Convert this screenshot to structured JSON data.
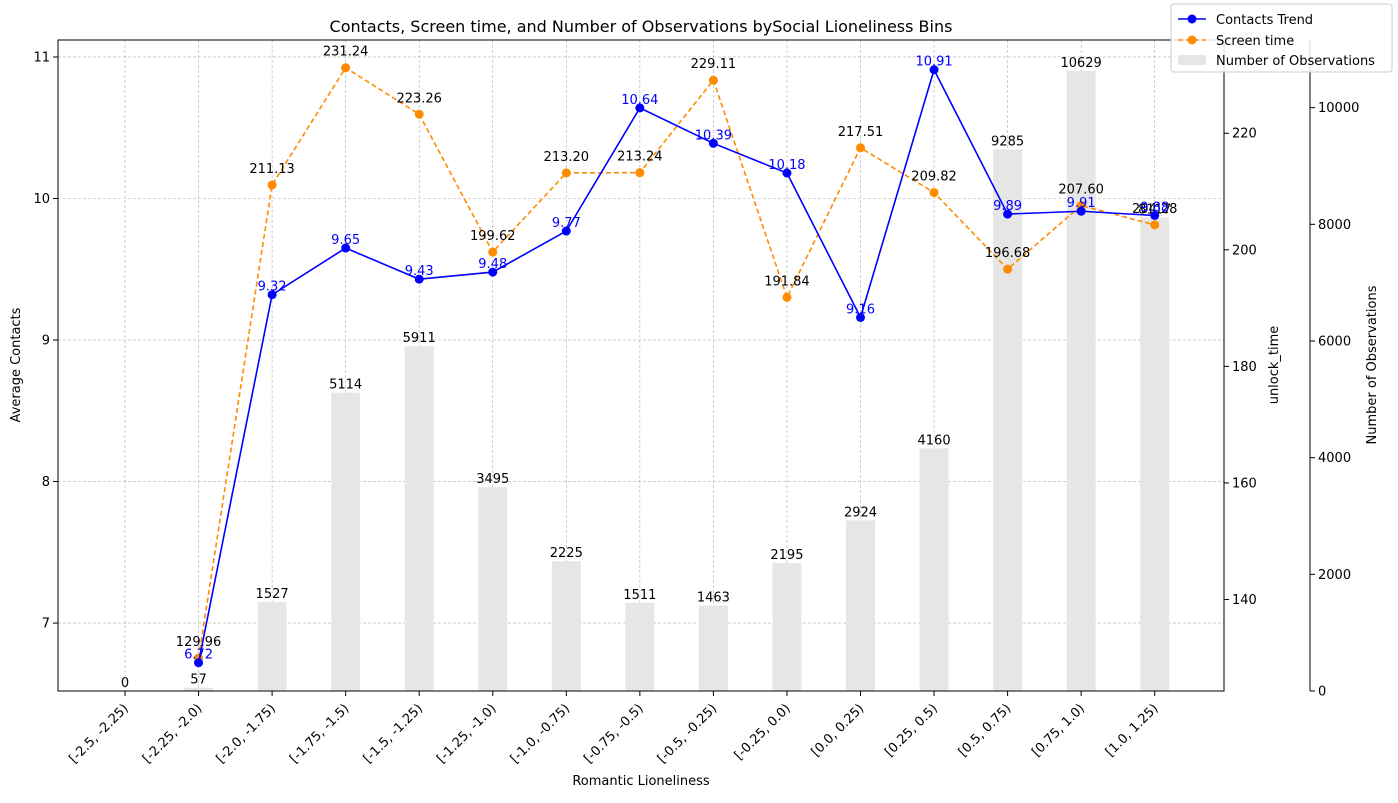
{
  "chart_data": {
    "type": "bar+line",
    "title": "Contacts, Screen time, and Number of Observations bySocial Lioneliness Bins",
    "xlabel": "Romantic Lioneliness",
    "ylabel_left": "Average Contacts",
    "ylabel_right_inner": "unlock_time",
    "ylabel_right_outer": "Number of Observations",
    "categories": [
      "[-2.5, -2.25)",
      "[-2.25, -2.0)",
      "[-2.0, -1.75)",
      "[-1.75, -1.5)",
      "[-1.5, -1.25)",
      "[-1.25, -1.0)",
      "[-1.0, -0.75)",
      "[-0.75, -0.5)",
      "[-0.5, -0.25)",
      "[-0.25, 0.0)",
      "[0.0, 0.25)",
      "[0.25, 0.5)",
      "[0.5, 0.75)",
      "[0.75, 1.0)",
      "[1.0, 1.25)"
    ],
    "contacts": {
      "name": "Contacts Trend",
      "color": "#0000ff",
      "values": [
        null,
        6.72,
        9.32,
        9.65,
        9.43,
        9.48,
        9.77,
        10.64,
        10.39,
        10.18,
        9.16,
        10.91,
        9.89,
        9.91,
        9.88
      ],
      "labels": [
        "",
        "6.72",
        "9.32",
        "9.65",
        "9.43",
        "9.48",
        "9.77",
        "10.64",
        "10.39",
        "10.18",
        "9.16",
        "10.91",
        "9.89",
        "9.91",
        "9.88"
      ]
    },
    "screen_time": {
      "name": "Screen time",
      "color": "#ff8c00",
      "values": [
        null,
        129.96,
        211.13,
        231.24,
        223.26,
        199.62,
        213.2,
        213.24,
        229.11,
        191.84,
        217.51,
        209.82,
        196.68,
        207.6,
        204.28
      ],
      "labels": [
        "",
        "129.96",
        "211.13",
        "231.24",
        "223.26",
        "199.62",
        "213.20",
        "213.24",
        "229.11",
        "191.84",
        "217.51",
        "209.82",
        "196.68",
        "207.60",
        "204.28"
      ]
    },
    "observations": {
      "name": "Number of Observations",
      "color": "#e6e6e6",
      "values": [
        0,
        57,
        1527,
        5114,
        5911,
        3495,
        2225,
        1511,
        1463,
        2195,
        2924,
        4160,
        9285,
        10629,
        8117
      ],
      "labels": [
        "0",
        "57",
        "1527",
        "5114",
        "5911",
        "3495",
        "2225",
        "1511",
        "1463",
        "2195",
        "2924",
        "4160",
        "9285",
        "10629",
        "8117"
      ]
    },
    "y_left": {
      "range": [
        6.52,
        11.12
      ],
      "ticks": [
        7,
        8,
        9,
        10,
        11
      ],
      "tick_labels": [
        "7",
        "8",
        "9",
        "10",
        "11"
      ]
    },
    "y_right_inner": {
      "range": [
        124.3,
        236.0
      ],
      "ticks": [
        140,
        160,
        180,
        200,
        220
      ],
      "tick_labels": [
        "140",
        "160",
        "180",
        "200",
        "220"
      ]
    },
    "y_right_outer": {
      "range": [
        0,
        11160
      ],
      "ticks": [
        0,
        2000,
        4000,
        6000,
        8000,
        10000
      ],
      "tick_labels": [
        "0",
        "2000",
        "4000",
        "6000",
        "8000",
        "10000"
      ]
    },
    "grid": true,
    "legend_position": "top-right"
  }
}
